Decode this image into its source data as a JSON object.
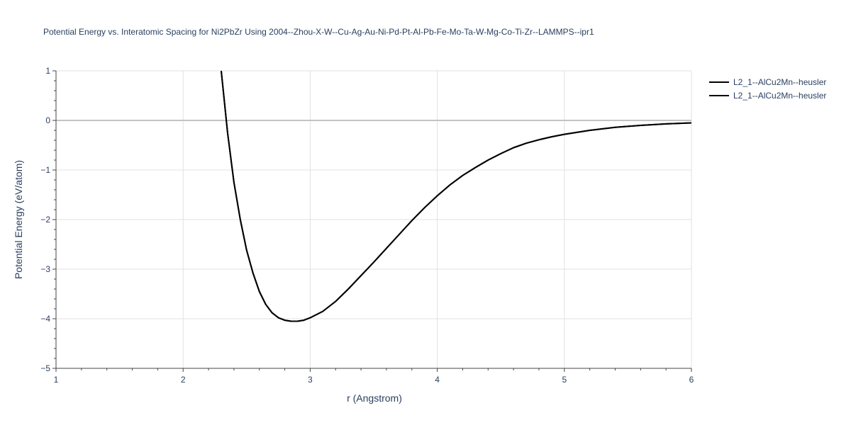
{
  "chart_data": {
    "type": "line",
    "title": "Potential Energy vs. Interatomic Spacing for Ni2PbZr Using 2004--Zhou-X-W--Cu-Ag-Au-Ni-Pd-Pt-Al-Pb-Fe-Mo-Ta-W-Mg-Co-Ti-Zr--LAMMPS--ipr1",
    "xlabel": "r (Angstrom)",
    "ylabel": "Potential Energy (eV/atom)",
    "xlim": [
      1,
      6
    ],
    "ylim": [
      -5,
      1
    ],
    "xticks": [
      1,
      2,
      3,
      4,
      5,
      6
    ],
    "yticks": [
      1,
      0,
      -1,
      -2,
      -3,
      -4,
      -5
    ],
    "ytick_labels": [
      "1",
      "0",
      "−1",
      "−2",
      "−3",
      "−4",
      "−5"
    ],
    "grid": true,
    "legend_position": "top-right",
    "line_color": "#000000",
    "series": [
      {
        "name": "L2_1--AlCu2Mn--heusler",
        "x": [
          2.3,
          2.35,
          2.4,
          2.45,
          2.5,
          2.55,
          2.6,
          2.65,
          2.7,
          2.75,
          2.8,
          2.85,
          2.9,
          2.95,
          3.0,
          3.1,
          3.2,
          3.3,
          3.4,
          3.5,
          3.6,
          3.7,
          3.8,
          3.9,
          4.0,
          4.1,
          4.2,
          4.3,
          4.4,
          4.5,
          4.6,
          4.7,
          4.8,
          4.9,
          5.0,
          5.2,
          5.4,
          5.6,
          5.8,
          6.0
        ],
        "y": [
          1.0,
          -0.25,
          -1.25,
          -2.0,
          -2.62,
          -3.08,
          -3.45,
          -3.71,
          -3.88,
          -3.98,
          -4.03,
          -4.05,
          -4.05,
          -4.03,
          -3.98,
          -3.85,
          -3.65,
          -3.4,
          -3.13,
          -2.86,
          -2.58,
          -2.3,
          -2.02,
          -1.76,
          -1.52,
          -1.3,
          -1.11,
          -0.95,
          -0.8,
          -0.67,
          -0.55,
          -0.46,
          -0.39,
          -0.33,
          -0.28,
          -0.2,
          -0.14,
          -0.1,
          -0.07,
          -0.05
        ]
      },
      {
        "name": "L2_1--AlCu2Mn--heusler",
        "x": [
          2.3,
          2.35,
          2.4,
          2.45,
          2.5,
          2.55,
          2.6,
          2.65,
          2.7,
          2.75,
          2.8,
          2.85,
          2.9,
          2.95,
          3.0,
          3.1,
          3.2,
          3.3,
          3.4,
          3.5,
          3.6,
          3.7,
          3.8,
          3.9,
          4.0,
          4.1,
          4.2,
          4.3,
          4.4,
          4.5,
          4.6,
          4.7,
          4.8,
          4.9,
          5.0,
          5.2,
          5.4,
          5.6,
          5.8,
          6.0
        ],
        "y": [
          1.0,
          -0.25,
          -1.25,
          -2.0,
          -2.62,
          -3.08,
          -3.45,
          -3.71,
          -3.88,
          -3.98,
          -4.03,
          -4.05,
          -4.05,
          -4.03,
          -3.98,
          -3.85,
          -3.65,
          -3.4,
          -3.13,
          -2.86,
          -2.58,
          -2.3,
          -2.02,
          -1.76,
          -1.52,
          -1.3,
          -1.11,
          -0.95,
          -0.8,
          -0.67,
          -0.55,
          -0.46,
          -0.39,
          -0.33,
          -0.28,
          -0.2,
          -0.14,
          -0.1,
          -0.07,
          -0.05
        ]
      }
    ]
  }
}
